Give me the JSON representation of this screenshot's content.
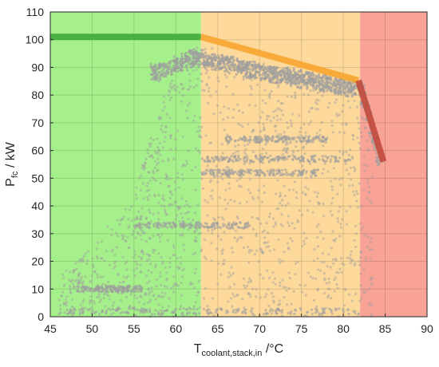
{
  "chart_data": {
    "type": "scatter",
    "title": "",
    "xlabel": {
      "main": "T",
      "subscript": "coolant,stack,in",
      "unit": " /°C"
    },
    "ylabel": {
      "main": "P",
      "subscript": "fc",
      "unit": " / kW"
    },
    "xlim": [
      45,
      90
    ],
    "ylim": [
      0,
      110
    ],
    "xticks": [
      45,
      50,
      55,
      60,
      65,
      70,
      75,
      80,
      85,
      90
    ],
    "yticks": [
      0,
      10,
      20,
      30,
      40,
      50,
      60,
      70,
      80,
      90,
      100,
      110
    ],
    "grid": true,
    "legend": "none",
    "regions": [
      {
        "name": "green",
        "x": [
          45,
          63
        ],
        "color": "#a6f08c"
      },
      {
        "name": "orange",
        "x": [
          63,
          82
        ],
        "color": "#fdd99b"
      },
      {
        "name": "red",
        "x": [
          82,
          90
        ],
        "color": "#f9a396"
      }
    ],
    "limit_lines": [
      {
        "name": "green-limit",
        "x": [
          45,
          63
        ],
        "y": [
          101,
          101
        ],
        "color": "#3fa83a"
      },
      {
        "name": "orange-limit",
        "x": [
          63,
          81.8
        ],
        "y": [
          101,
          85.3
        ],
        "color": "#f7a531"
      },
      {
        "name": "red-limit",
        "x": [
          81.8,
          84.8
        ],
        "y": [
          85.3,
          56
        ],
        "color": "#c24a3d"
      }
    ],
    "scatter_color": "#9e9e9e",
    "scatter_envelope": {
      "x": [
        46,
        50,
        55,
        58,
        60,
        62,
        63,
        66,
        70,
        74,
        78,
        81,
        82,
        83,
        84
      ],
      "ymax": [
        14,
        26,
        45,
        75,
        92,
        97,
        98,
        96,
        92,
        89,
        86,
        84,
        83,
        62,
        55
      ]
    },
    "dense_band": {
      "x": [
        58,
        62,
        63,
        66,
        70,
        74,
        78,
        81
      ],
      "y": [
        91,
        96,
        96,
        94,
        91,
        89,
        87,
        85
      ]
    },
    "feature_clusters": [
      {
        "x": [
          63,
          81
        ],
        "y": 57
      },
      {
        "x": [
          66,
          78
        ],
        "y": 64
      },
      {
        "x": [
          63,
          77
        ],
        "y": 52
      },
      {
        "x": [
          55,
          69
        ],
        "y": 33
      },
      {
        "x": [
          47,
          82
        ],
        "y": 2
      },
      {
        "x": [
          48,
          56
        ],
        "y": 10
      },
      {
        "x": [
          82,
          84.5
        ],
        "y": [
          55,
          84
        ]
      }
    ]
  }
}
